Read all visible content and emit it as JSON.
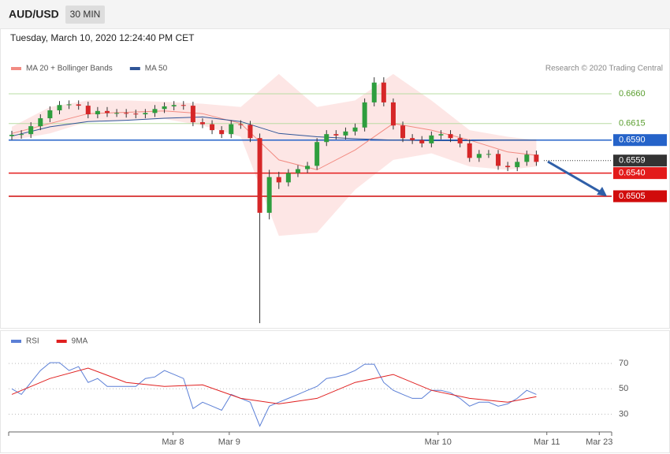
{
  "header": {
    "symbol": "AUD/USD",
    "timeframe": "30 MIN",
    "date": "Tuesday, March 10, 2020 12:24:40 PM CET",
    "credit": "Research © 2020 Trading Central"
  },
  "chart_data": [
    {
      "type": "candlestick",
      "up_color": "#2e9e3e",
      "down_color": "#d62728",
      "xlim": [
        -0.33,
        62.9
      ],
      "ylim": [
        0.6307,
        0.6759
      ],
      "open": [
        0.6596,
        0.6598,
        0.6599,
        0.6611,
        0.6623,
        0.6635,
        0.6643,
        0.6644,
        0.6642,
        0.6629,
        0.6634,
        0.6631,
        0.6631,
        0.663,
        0.6629,
        0.6631,
        0.6637,
        0.6641,
        0.6643,
        0.6642,
        0.6617,
        0.6614,
        0.6605,
        0.6599,
        0.6614,
        0.6613,
        0.6593,
        0.648,
        0.6534,
        0.6526,
        0.654,
        0.6546,
        0.6551,
        0.6587,
        0.6599,
        0.6597,
        0.6603,
        0.6609,
        0.6647,
        0.6677,
        0.6647,
        0.6612,
        0.6593,
        0.659,
        0.6585,
        0.6597,
        0.6599,
        0.6593,
        0.6585,
        0.6563,
        0.6569,
        0.6569,
        0.6551,
        0.6549,
        0.6557,
        0.6568
      ],
      "high": [
        0.6604,
        0.6605,
        0.6617,
        0.6629,
        0.6641,
        0.6649,
        0.665,
        0.665,
        0.6648,
        0.664,
        0.664,
        0.6637,
        0.6637,
        0.6636,
        0.6637,
        0.6643,
        0.6647,
        0.6649,
        0.6649,
        0.6648,
        0.6623,
        0.662,
        0.6611,
        0.662,
        0.662,
        0.6619,
        0.66,
        0.6545,
        0.6542,
        0.6546,
        0.6552,
        0.6557,
        0.6593,
        0.6605,
        0.6605,
        0.6609,
        0.6615,
        0.6653,
        0.6685,
        0.6685,
        0.6653,
        0.6618,
        0.6599,
        0.6596,
        0.6603,
        0.6605,
        0.6605,
        0.6599,
        0.6591,
        0.6575,
        0.6575,
        0.6575,
        0.6557,
        0.6563,
        0.6574,
        0.6574
      ],
      "low": [
        0.659,
        0.6592,
        0.6593,
        0.6605,
        0.6617,
        0.6629,
        0.6637,
        0.6636,
        0.6623,
        0.6623,
        0.6625,
        0.6625,
        0.6624,
        0.6623,
        0.6623,
        0.6625,
        0.6631,
        0.6635,
        0.6636,
        0.6611,
        0.6608,
        0.6599,
        0.6593,
        0.6593,
        0.6607,
        0.6587,
        0.6313,
        0.647,
        0.6516,
        0.652,
        0.6534,
        0.654,
        0.6545,
        0.6581,
        0.6591,
        0.6591,
        0.6597,
        0.6603,
        0.6641,
        0.6641,
        0.6606,
        0.6587,
        0.6584,
        0.6579,
        0.6579,
        0.6591,
        0.6587,
        0.6579,
        0.6557,
        0.6557,
        0.6563,
        0.6545,
        0.6543,
        0.6543,
        0.6551,
        0.6551
      ],
      "close": [
        0.6598,
        0.6599,
        0.6611,
        0.6623,
        0.6635,
        0.6643,
        0.6644,
        0.6642,
        0.6629,
        0.6634,
        0.6631,
        0.6631,
        0.663,
        0.6629,
        0.6631,
        0.6637,
        0.6641,
        0.6643,
        0.6642,
        0.6617,
        0.6614,
        0.6605,
        0.6599,
        0.6614,
        0.6613,
        0.6593,
        0.648,
        0.6534,
        0.6526,
        0.654,
        0.6546,
        0.6551,
        0.6587,
        0.6599,
        0.6597,
        0.6603,
        0.6609,
        0.6647,
        0.6677,
        0.6647,
        0.6612,
        0.6593,
        0.659,
        0.6585,
        0.6597,
        0.6599,
        0.6593,
        0.6585,
        0.6563,
        0.6569,
        0.6569,
        0.6551,
        0.6549,
        0.6557,
        0.6568,
        0.6557
      ],
      "series": [
        {
          "name": "MA 20 + Bollinger Bands",
          "color": "#f28b82",
          "band_color": "#fde0df",
          "x": [
            0,
            4,
            8,
            12,
            16,
            20,
            24,
            28,
            32,
            36,
            40,
            44,
            48,
            52,
            55
          ],
          "values": [
            0.66,
            0.6615,
            0.663,
            0.6632,
            0.6634,
            0.663,
            0.6615,
            0.656,
            0.6545,
            0.6575,
            0.6615,
            0.6605,
            0.659,
            0.6572,
            0.6567
          ],
          "upper": [
            0.661,
            0.664,
            0.665,
            0.665,
            0.6648,
            0.6645,
            0.664,
            0.669,
            0.664,
            0.665,
            0.669,
            0.665,
            0.6605,
            0.6595,
            0.659
          ],
          "lower": [
            0.659,
            0.66,
            0.6618,
            0.662,
            0.6622,
            0.6612,
            0.6595,
            0.6445,
            0.645,
            0.6515,
            0.656,
            0.657,
            0.655,
            0.6545,
            0.655
          ]
        },
        {
          "name": "MA 50",
          "color": "#2f5597",
          "x": [
            0,
            4,
            8,
            12,
            16,
            20,
            24,
            28,
            32,
            36,
            40,
            44,
            48,
            52,
            55
          ],
          "values": [
            0.6596,
            0.661,
            0.6618,
            0.662,
            0.6623,
            0.6625,
            0.6618,
            0.66,
            0.6595,
            0.6592,
            0.659,
            0.6589,
            0.6589,
            0.659,
            0.659
          ]
        }
      ],
      "levels": [
        {
          "value": 0.666,
          "label": "0.6660",
          "color": "#b9dca3",
          "text_color": "#5a9e2f",
          "box": false
        },
        {
          "value": 0.6615,
          "color": "#b9dca3",
          "text_color": "#5a9e2f",
          "box": false
        },
        {
          "value": 0.659,
          "label": "0.6590",
          "color": "#2563c9",
          "text_color": "#ffffff",
          "box": true
        },
        {
          "value": 0.6559,
          "color": "#333333",
          "text_color": "#ffffff",
          "box": true,
          "dotted": true
        },
        {
          "value": 0.654,
          "label": "0.6540",
          "color": "#e31b1b",
          "text_color": "#ffffff",
          "box": true
        },
        {
          "value": 0.6505,
          "color": "#d10c0c",
          "text_color": "#ffffff",
          "box": true
        }
      ]
    },
    {
      "type": "line",
      "xlim": [
        -0.33,
        62.9
      ],
      "ylim": [
        16,
        80
      ],
      "yticks": [
        30,
        50,
        70
      ],
      "grid": true,
      "xticks": [
        {
          "value": 16.9,
          "label": "Mar 8"
        },
        {
          "value": 22.8,
          "label": "Mar 9"
        },
        {
          "value": 44.7,
          "label": "Mar 10"
        },
        {
          "value": 56.1,
          "label": "Mar 11"
        },
        {
          "value": 61.6,
          "label": "Mar 23"
        }
      ],
      "series": [
        {
          "name": "RSI",
          "color": "#5b7fd6",
          "values": [
            50,
            45.6,
            55,
            64.4,
            70.6,
            70.6,
            64.4,
            67.5,
            55,
            58.1,
            51.9,
            51.9,
            51.9,
            51.9,
            58.1,
            59.4,
            64.4,
            61.3,
            58.1,
            34.4,
            39.4,
            36.3,
            33.1,
            45.6,
            42.5,
            39.4,
            20.6,
            36.3,
            39.4,
            42.5,
            45.6,
            48.8,
            51.9,
            58.1,
            59.4,
            61.3,
            64.4,
            69.4,
            69.4,
            55,
            48.8,
            45.6,
            42.5,
            42.5,
            48.8,
            48.8,
            46.9,
            42.5,
            36.3,
            39.4,
            39.4,
            36.3,
            38.1,
            42.5,
            48.8,
            45.6
          ]
        },
        {
          "name": "9MA",
          "color": "#e02020",
          "x": [
            0,
            4,
            8,
            12,
            16,
            20,
            24,
            28,
            32,
            36,
            40,
            44,
            48,
            52,
            55
          ],
          "values": [
            45.6,
            58.1,
            66.3,
            55,
            51.9,
            53.1,
            42.5,
            38.1,
            42.5,
            55,
            61.3,
            48.8,
            42.5,
            39.4,
            43.8
          ]
        }
      ]
    }
  ]
}
